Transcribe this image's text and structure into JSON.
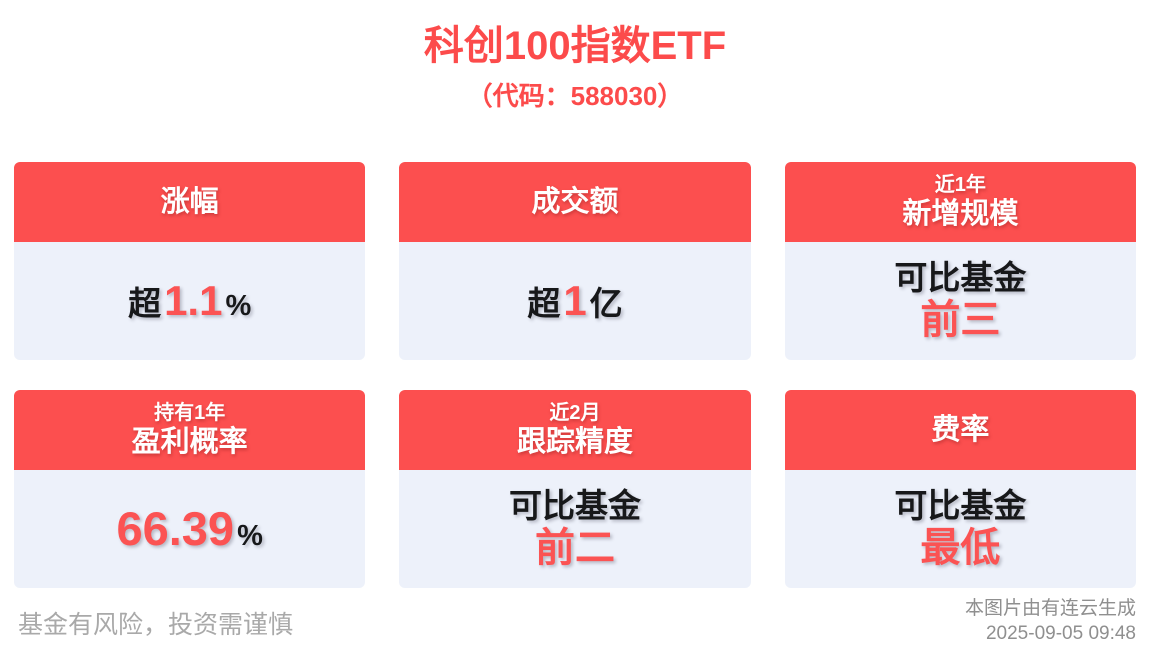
{
  "header": {
    "title": "科创100指数ETF",
    "subtitle": "（代码：588030）"
  },
  "cards": [
    {
      "id": "price-change",
      "header": [
        "涨幅"
      ],
      "value_lines": [
        [
          {
            "text": "超",
            "color": "dark",
            "size": "md"
          },
          {
            "text": "1.1",
            "color": "accent",
            "size": "lg"
          },
          {
            "text": "%",
            "color": "dark",
            "size": "sm"
          }
        ]
      ]
    },
    {
      "id": "turnover",
      "header": [
        "成交额"
      ],
      "value_lines": [
        [
          {
            "text": "超",
            "color": "dark",
            "size": "md"
          },
          {
            "text": "1",
            "color": "accent",
            "size": "lg"
          },
          {
            "text": "亿",
            "color": "dark",
            "size": "md"
          }
        ]
      ]
    },
    {
      "id": "new-scale-1y",
      "header": [
        "近1年",
        "新增规模"
      ],
      "value_lines": [
        [
          {
            "text": "可比基金",
            "color": "dark",
            "size": "md"
          }
        ],
        [
          {
            "text": "前三",
            "color": "accent",
            "size": "lg2"
          }
        ]
      ]
    },
    {
      "id": "profit-probability-1y",
      "header": [
        "持有1年",
        "盈利概率"
      ],
      "value_lines": [
        [
          {
            "text": "66.39",
            "color": "accent",
            "size": "xl"
          },
          {
            "text": "%",
            "color": "dark",
            "size": "sm"
          }
        ]
      ]
    },
    {
      "id": "tracking-precision-2m",
      "header": [
        "近2月",
        "跟踪精度"
      ],
      "value_lines": [
        [
          {
            "text": "可比基金",
            "color": "dark",
            "size": "md"
          }
        ],
        [
          {
            "text": "前二",
            "color": "accent",
            "size": "lg2"
          }
        ]
      ]
    },
    {
      "id": "fee-rate",
      "header": [
        "费率"
      ],
      "value_lines": [
        [
          {
            "text": "可比基金",
            "color": "dark",
            "size": "md"
          }
        ],
        [
          {
            "text": "最低",
            "color": "accent",
            "size": "lg2"
          }
        ]
      ]
    }
  ],
  "footer": {
    "disclaimer": "基金有风险，投资需谨慎",
    "credit": "本图片由有连云生成",
    "timestamp": "2025-09-05 09:48"
  },
  "colors": {
    "accent": "#fc4b4b",
    "header_bg": "#fc4f4f",
    "body_bg": "#edf1fa",
    "text_dark": "#17181a",
    "value_accent": "#fb5353",
    "disclaimer_gray": "#a9a9a9",
    "credit_gray": "#8f8f8f"
  }
}
